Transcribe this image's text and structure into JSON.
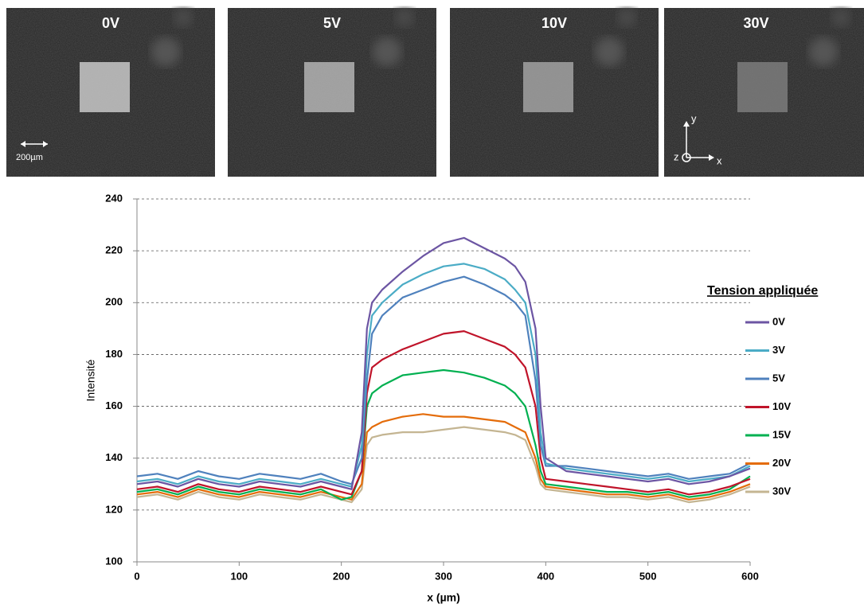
{
  "images": [
    {
      "label": "0V"
    },
    {
      "label": "5V"
    },
    {
      "label": "10V"
    },
    {
      "label": "30V"
    }
  ],
  "scale_bar": "200µm",
  "axis_icon": {
    "y": "y",
    "z": "z",
    "x": "x"
  },
  "chart_data": {
    "type": "line",
    "xlabel": "x (µm)",
    "ylabel": "Intensité",
    "legend_title": "Tension appliquée",
    "x": [
      0,
      20,
      40,
      60,
      80,
      100,
      120,
      140,
      160,
      180,
      200,
      210,
      220,
      225,
      230,
      240,
      260,
      280,
      300,
      320,
      340,
      360,
      370,
      380,
      390,
      395,
      400,
      420,
      440,
      460,
      480,
      500,
      520,
      540,
      560,
      580,
      600
    ],
    "series": [
      {
        "name": "0V",
        "color": "#6c55a3",
        "values": [
          130,
          131,
          129,
          132,
          130,
          129,
          131,
          130,
          129,
          131,
          129,
          128,
          150,
          190,
          200,
          205,
          212,
          218,
          223,
          225,
          221,
          217,
          214,
          208,
          190,
          160,
          140,
          135,
          134,
          133,
          132,
          131,
          132,
          130,
          131,
          133,
          136
        ]
      },
      {
        "name": "3V",
        "color": "#4bacc6",
        "values": [
          131,
          132,
          130,
          133,
          131,
          130,
          132,
          131,
          130,
          132,
          130,
          129,
          145,
          180,
          195,
          200,
          207,
          211,
          214,
          215,
          213,
          209,
          205,
          200,
          180,
          150,
          138,
          136,
          135,
          134,
          133,
          132,
          133,
          131,
          132,
          133,
          137
        ]
      },
      {
        "name": "5V",
        "color": "#4f81bd",
        "values": [
          133,
          134,
          132,
          135,
          133,
          132,
          134,
          133,
          132,
          134,
          131,
          130,
          140,
          170,
          188,
          195,
          202,
          205,
          208,
          210,
          207,
          203,
          200,
          195,
          170,
          145,
          137,
          137,
          136,
          135,
          134,
          133,
          134,
          132,
          133,
          134,
          138
        ]
      },
      {
        "name": "10V",
        "color": "#c0142a",
        "values": [
          128,
          129,
          127,
          130,
          128,
          127,
          129,
          128,
          127,
          129,
          127,
          126,
          135,
          165,
          175,
          178,
          182,
          185,
          188,
          189,
          186,
          183,
          180,
          175,
          160,
          140,
          132,
          131,
          130,
          129,
          128,
          127,
          128,
          126,
          127,
          129,
          132
        ]
      },
      {
        "name": "15V",
        "color": "#00b050",
        "values": [
          127,
          128,
          126,
          129,
          127,
          126,
          128,
          127,
          126,
          128,
          124,
          125,
          135,
          160,
          165,
          168,
          172,
          173,
          174,
          173,
          171,
          168,
          165,
          160,
          145,
          135,
          130,
          129,
          128,
          127,
          127,
          126,
          127,
          125,
          126,
          128,
          133
        ]
      },
      {
        "name": "20V",
        "color": "#e46c0a",
        "values": [
          126,
          127,
          125,
          128,
          126,
          125,
          127,
          126,
          125,
          127,
          125,
          124,
          130,
          150,
          152,
          154,
          156,
          157,
          156,
          156,
          155,
          154,
          152,
          150,
          140,
          132,
          129,
          128,
          127,
          126,
          126,
          125,
          126,
          124,
          125,
          127,
          130
        ]
      },
      {
        "name": "30V",
        "color": "#c4b592",
        "values": [
          125,
          126,
          124,
          127,
          125,
          124,
          126,
          125,
          124,
          126,
          124,
          123,
          128,
          145,
          148,
          149,
          150,
          150,
          151,
          152,
          151,
          150,
          149,
          147,
          137,
          130,
          128,
          127,
          126,
          125,
          125,
          124,
          125,
          123,
          124,
          126,
          129
        ]
      }
    ],
    "xlim": [
      0,
      600
    ],
    "xticks": [
      0,
      100,
      200,
      300,
      400,
      500,
      600
    ],
    "ylim": [
      100,
      240
    ],
    "yticks": [
      100,
      120,
      140,
      160,
      180,
      200,
      220,
      240
    ],
    "grid": true
  }
}
